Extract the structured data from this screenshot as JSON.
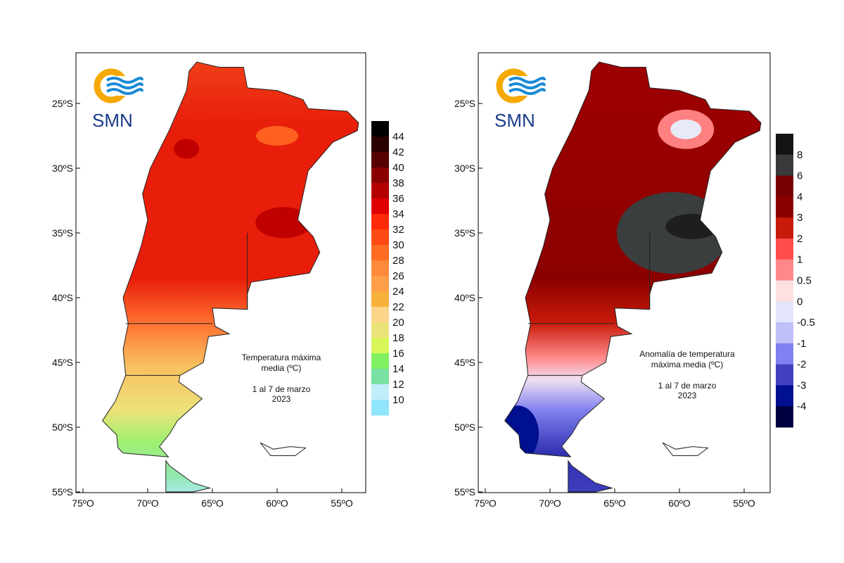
{
  "panels": [
    {
      "logo_text": "SMN",
      "title_lines": [
        "Temperatura máxima",
        "media (ºC)"
      ],
      "period_lines": [
        "1 al 7 de marzo",
        "2023"
      ],
      "lat_ticks": [
        "25ºS",
        "30ºS",
        "35ºS",
        "40ºS",
        "45ºS",
        "50ºS",
        "55ºS"
      ],
      "lon_ticks": [
        "75ºO",
        "70ºO",
        "65ºO",
        "60ºO",
        "55ºO"
      ],
      "colorbar": {
        "labels": [
          "44",
          "42",
          "40",
          "38",
          "36",
          "34",
          "32",
          "30",
          "28",
          "26",
          "24",
          "22",
          "20",
          "18",
          "16",
          "14",
          "12",
          "10"
        ],
        "colors": [
          "#000000",
          "#2a0000",
          "#560000",
          "#8a0000",
          "#b40000",
          "#e00000",
          "#ff2a0a",
          "#ff4a14",
          "#ff6c22",
          "#ff8a3c",
          "#ff9e48",
          "#f7b23c",
          "#fcd48a",
          "#ece27a",
          "#d8f55a",
          "#80f060",
          "#78e0a0",
          "#c0eefa",
          "#90e4fc"
        ]
      }
    },
    {
      "logo_text": "SMN",
      "title_lines": [
        "Anomalía de temperatura",
        "máxima media (ºC)"
      ],
      "period_lines": [
        "1 al 7 de marzo",
        "2023"
      ],
      "lat_ticks": [
        "25ºS",
        "30ºS",
        "35ºS",
        "40ºS",
        "45ºS",
        "50ºS",
        "55ºS"
      ],
      "lon_ticks": [
        "75ºO",
        "70ºO",
        "65ºO",
        "60ºO",
        "55ºO"
      ],
      "colorbar": {
        "labels": [
          "8",
          "6",
          "4",
          "3",
          "2",
          "1",
          "0.5",
          "0",
          "-0.5",
          "-1",
          "-2",
          "-3",
          "-4"
        ],
        "colors": [
          "#141414",
          "#3a3a3a",
          "#780000",
          "#8a0000",
          "#c81a0a",
          "#ff4c4c",
          "#ff8888",
          "#ffe0e0",
          "#e4e4fa",
          "#c0c0f8",
          "#8080f0",
          "#4040c0",
          "#001090",
          "#000040"
        ]
      }
    }
  ]
}
